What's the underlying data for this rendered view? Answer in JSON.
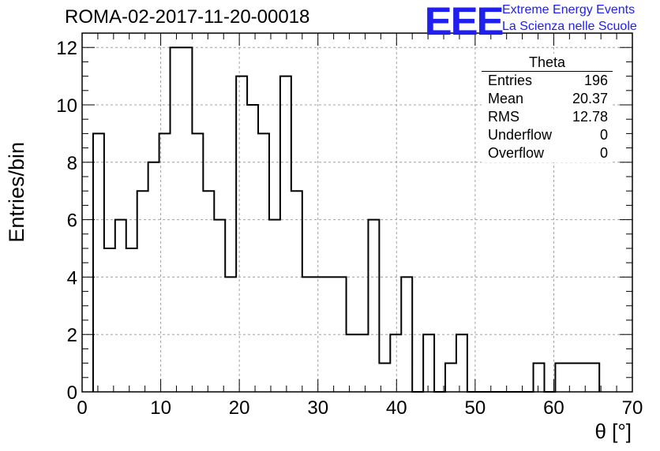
{
  "header": {
    "title": "ROMA-02-2017-11-20-00018",
    "logo_text": "EEE",
    "logo_line1": "Extreme Energy Events",
    "logo_line2": "La Scienza nelle Scuole"
  },
  "colors": {
    "logo": "#2020ee",
    "grid": "#a0a0a0",
    "line": "#000000"
  },
  "stats": {
    "title": "Theta",
    "rows": [
      {
        "label": "Entries",
        "value": "196"
      },
      {
        "label": "Mean",
        "value": "20.37"
      },
      {
        "label": "RMS",
        "value": "12.78"
      },
      {
        "label": "Underflow",
        "value": "0"
      },
      {
        "label": "Overflow",
        "value": "0"
      }
    ]
  },
  "chart_data": {
    "type": "histogram",
    "xlabel": "θ [°]",
    "ylabel": "Entries/bin",
    "xlim": [
      0,
      70
    ],
    "ylim": [
      0,
      12.5
    ],
    "xticks": [
      0,
      10,
      20,
      30,
      40,
      50,
      60,
      70
    ],
    "yticks": [
      0,
      2,
      4,
      6,
      8,
      10,
      12
    ],
    "grid": true,
    "bin_edges": [
      1.4,
      2.8,
      4.2,
      5.6,
      7.0,
      8.4,
      9.8,
      11.2,
      12.6,
      14.0,
      15.4,
      16.8,
      18.2,
      19.6,
      21.0,
      22.4,
      23.8,
      25.2,
      26.6,
      28.0,
      29.4,
      30.8,
      32.2,
      33.6,
      35.0,
      36.4,
      37.8,
      39.2,
      40.6,
      42.0,
      43.4,
      44.8,
      46.2,
      47.6,
      49.0,
      50.4,
      51.8,
      53.2,
      54.6,
      56.0,
      57.4,
      58.8,
      60.2,
      61.6,
      63.0,
      64.4,
      65.8
    ],
    "values": [
      9,
      5,
      6,
      5,
      7,
      8,
      9,
      12,
      12,
      9,
      7,
      6,
      4,
      11,
      10,
      9,
      6,
      11,
      7,
      4,
      4,
      4,
      4,
      2,
      2,
      6,
      1,
      2,
      4,
      0,
      2,
      0,
      1,
      2,
      0,
      0,
      0,
      0,
      0,
      0,
      1,
      0,
      1,
      1,
      1,
      1
    ]
  }
}
